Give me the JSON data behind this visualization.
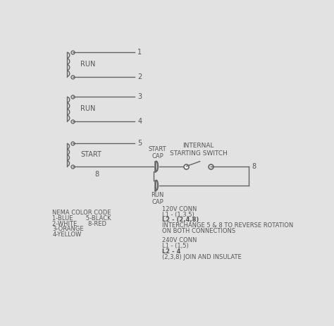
{
  "bg_color": "#e2e2e2",
  "line_color": "#636363",
  "text_color": "#555555",
  "coil1_label": "RUN",
  "coil2_label": "RUN",
  "coil3_label": "START",
  "start_cap_label": "START\nCAP",
  "run_cap_label": "RUN\nCAP",
  "internal_switch_label": "INTERNAL\nSTARTING SWITCH",
  "nema_line1": "NEMA COLOR CODE",
  "nema_line2": "1-BLUE       5-BLACK",
  "nema_line3": "2-WHITE      8-RED",
  "nema_line4": "3-ORANGE",
  "nema_line5": "4-YELLOW",
  "conn_120v_1": "120V CONN",
  "conn_120v_2": "L1 - (1,3,5)",
  "conn_120v_3": "L2 - (2,4,8)",
  "conn_120v_4": "INTERCHANGE 5 & 8 TO REVERSE ROTATION",
  "conn_120v_5": "ON BOTH CONNECTIONS",
  "conn_240v_1": "240V CONN",
  "conn_240v_2": "L1 - (1,5)",
  "conn_240v_3": "L2 - 4",
  "conn_240v_4": "(2,3,8) JOIN AND INSULATE"
}
